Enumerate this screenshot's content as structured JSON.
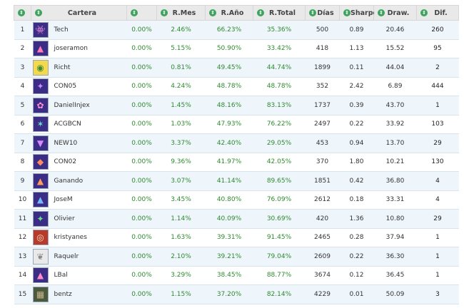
{
  "header": {
    "cols": [
      {
        "label": "",
        "icon": "sort-icon"
      },
      {
        "label": "Cartera",
        "icon": "sort-icon"
      },
      {
        "label": "",
        "icon": "sort-icon"
      },
      {
        "label": "R.Mes",
        "icon": "sort-icon"
      },
      {
        "label": "R.Año",
        "icon": "sort-icon"
      },
      {
        "label": "R.Total",
        "icon": "sort-icon"
      },
      {
        "label": "Días",
        "icon": "sort-icon"
      },
      {
        "label": "Sharpe",
        "icon": "sort-icon"
      },
      {
        "label": "Draw.",
        "icon": "sort-icon"
      },
      {
        "label": "Dif.",
        "icon": "sort-icon"
      }
    ]
  },
  "rows": [
    {
      "rank": "1",
      "name": "Tech",
      "flat": "0.00%",
      "mes": "2.46%",
      "ano": "66.23%",
      "total": "35.36%",
      "dias": "500",
      "sharpe": "0.89",
      "draw": "20.46",
      "dif": "260",
      "avatar_bg": "#3b2c86",
      "avatar_fg": "#7cc7ff",
      "avatar_glyph": "👾"
    },
    {
      "rank": "2",
      "name": "joseramon",
      "flat": "0.00%",
      "mes": "5.15%",
      "ano": "50.90%",
      "total": "33.42%",
      "dias": "418",
      "sharpe": "1.13",
      "draw": "15.52",
      "dif": "95",
      "avatar_bg": "#3b2c86",
      "avatar_fg": "#ff7ab6",
      "avatar_glyph": "▲"
    },
    {
      "rank": "3",
      "name": "Richt",
      "flat": "0.00%",
      "mes": "0.81%",
      "ano": "49.45%",
      "total": "44.74%",
      "dias": "1899",
      "sharpe": "0.11",
      "draw": "44.04",
      "dif": "2",
      "avatar_bg": "#f5d94a",
      "avatar_fg": "#3a8a3a",
      "avatar_glyph": "◉"
    },
    {
      "rank": "4",
      "name": "CON05",
      "flat": "0.00%",
      "mes": "4.24%",
      "ano": "48.78%",
      "total": "48.78%",
      "dias": "352",
      "sharpe": "2.42",
      "draw": "6.89",
      "dif": "444",
      "avatar_bg": "#3b2c86",
      "avatar_fg": "#c58cff",
      "avatar_glyph": "✦"
    },
    {
      "rank": "5",
      "name": "DanielInjex",
      "flat": "0.00%",
      "mes": "1.45%",
      "ano": "48.16%",
      "total": "83.13%",
      "dias": "1737",
      "sharpe": "0.39",
      "draw": "43.70",
      "dif": "1",
      "avatar_bg": "#3b2c86",
      "avatar_fg": "#ff8fd0",
      "avatar_glyph": "✿"
    },
    {
      "rank": "6",
      "name": "ACGBCN",
      "flat": "0.00%",
      "mes": "1.03%",
      "ano": "47.93%",
      "total": "76.22%",
      "dias": "2497",
      "sharpe": "0.22",
      "draw": "33.92",
      "dif": "103",
      "avatar_bg": "#3b2c86",
      "avatar_fg": "#66ddcc",
      "avatar_glyph": "✶"
    },
    {
      "rank": "7",
      "name": "NEW10",
      "flat": "0.00%",
      "mes": "3.37%",
      "ano": "42.40%",
      "total": "29.05%",
      "dias": "453",
      "sharpe": "0.94",
      "draw": "13.70",
      "dif": "29",
      "avatar_bg": "#3b2c86",
      "avatar_fg": "#d987ff",
      "avatar_glyph": "▼"
    },
    {
      "rank": "8",
      "name": "CON02",
      "flat": "0.00%",
      "mes": "9.36%",
      "ano": "41.97%",
      "total": "42.05%",
      "dias": "370",
      "sharpe": "1.80",
      "draw": "10.21",
      "dif": "130",
      "avatar_bg": "#3b2c86",
      "avatar_fg": "#ff8a5c",
      "avatar_glyph": "◆"
    },
    {
      "rank": "9",
      "name": "Ganando",
      "flat": "0.00%",
      "mes": "3.07%",
      "ano": "41.14%",
      "total": "89.65%",
      "dias": "1851",
      "sharpe": "0.42",
      "draw": "36.80",
      "dif": "4",
      "avatar_bg": "#3b2c86",
      "avatar_fg": "#ff9c5c",
      "avatar_glyph": "▲"
    },
    {
      "rank": "10",
      "name": "JoseM",
      "flat": "0.00%",
      "mes": "3.45%",
      "ano": "40.80%",
      "total": "76.09%",
      "dias": "2612",
      "sharpe": "0.18",
      "draw": "33.31",
      "dif": "4",
      "avatar_bg": "#3b2c86",
      "avatar_fg": "#7ab6ff",
      "avatar_glyph": "▲"
    },
    {
      "rank": "11",
      "name": "Olivier",
      "flat": "0.00%",
      "mes": "1.14%",
      "ano": "40.09%",
      "total": "30.69%",
      "dias": "420",
      "sharpe": "1.36",
      "draw": "10.80",
      "dif": "29",
      "avatar_bg": "#3b2c86",
      "avatar_fg": "#66dd88",
      "avatar_glyph": "✦"
    },
    {
      "rank": "12",
      "name": "kristyanes",
      "flat": "0.00%",
      "mes": "1.63%",
      "ano": "39.31%",
      "total": "91.45%",
      "dias": "2465",
      "sharpe": "0.28",
      "draw": "37.94",
      "dif": "1",
      "avatar_bg": "#b83a2a",
      "avatar_fg": "#f1e0c0",
      "avatar_glyph": "◎"
    },
    {
      "rank": "13",
      "name": "Raquelr",
      "flat": "0.00%",
      "mes": "2.10%",
      "ano": "39.21%",
      "total": "79.04%",
      "dias": "2609",
      "sharpe": "0.22",
      "draw": "36.30",
      "dif": "1",
      "avatar_bg": "#e9e9e9",
      "avatar_fg": "#8a8a8a",
      "avatar_glyph": "❦"
    },
    {
      "rank": "14",
      "name": "LBal",
      "flat": "0.00%",
      "mes": "3.29%",
      "ano": "38.45%",
      "total": "88.77%",
      "dias": "3674",
      "sharpe": "0.12",
      "draw": "36.45",
      "dif": "1",
      "avatar_bg": "#3b2c86",
      "avatar_fg": "#ff8ac8",
      "avatar_glyph": "▲"
    },
    {
      "rank": "15",
      "name": "bentz",
      "flat": "0.00%",
      "mes": "1.15%",
      "ano": "37.20%",
      "total": "82.14%",
      "dias": "4229",
      "sharpe": "0.01",
      "draw": "50.09",
      "dif": "3",
      "avatar_bg": "#4a5a3a",
      "avatar_fg": "#c8b48a",
      "avatar_glyph": "▦"
    }
  ]
}
